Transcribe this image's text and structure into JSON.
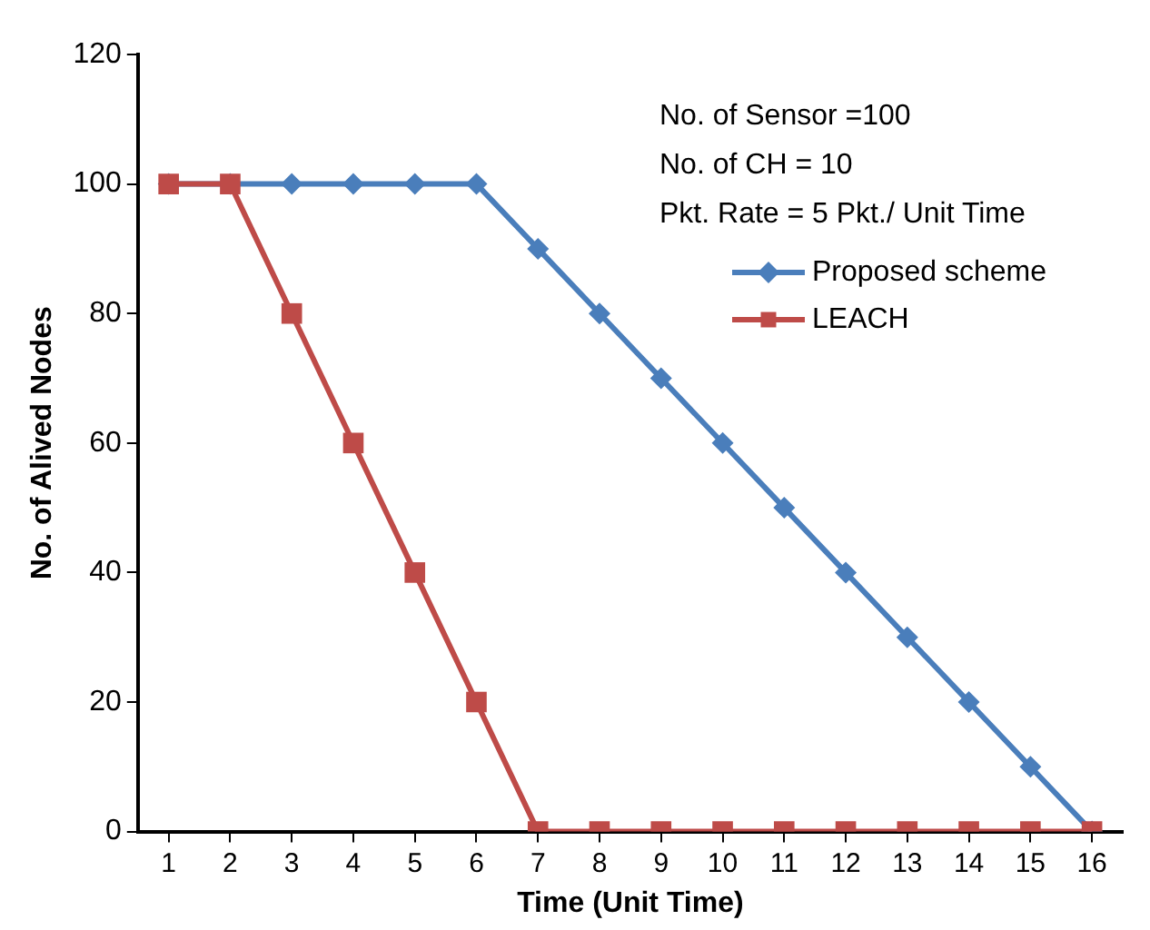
{
  "chart_data": {
    "type": "line",
    "xlabel": "Time (Unit Time)",
    "ylabel": "No. of Alived Nodes",
    "x": [
      1,
      2,
      3,
      4,
      5,
      6,
      7,
      8,
      9,
      10,
      11,
      12,
      13,
      14,
      15,
      16
    ],
    "xlim": [
      0.5,
      16.5
    ],
    "xticks": [
      1,
      2,
      3,
      4,
      5,
      6,
      7,
      8,
      9,
      10,
      11,
      12,
      13,
      14,
      15,
      16
    ],
    "series": [
      {
        "name": "Proposed scheme",
        "color": "#4a7ebb",
        "marker": "diamond",
        "values": [
          100,
          100,
          100,
          100,
          100,
          100,
          90,
          80,
          70,
          60,
          50,
          40,
          30,
          20,
          10,
          0
        ]
      },
      {
        "name": "LEACH",
        "color": "#be4b48",
        "marker": "square",
        "values": [
          100,
          100,
          80,
          60,
          40,
          20,
          0,
          0,
          0,
          0,
          0,
          0,
          0,
          0,
          0,
          0
        ]
      }
    ],
    "ylim": [
      0,
      120
    ],
    "yticks": [
      0,
      20,
      40,
      60,
      80,
      100,
      120
    ],
    "grid": false,
    "legend": "top right",
    "line_style": "solid",
    "annotations": [
      "No. of Sensor =100",
      "No. of CH = 10",
      "Pkt. Rate = 5 Pkt./ Unit Time"
    ]
  }
}
